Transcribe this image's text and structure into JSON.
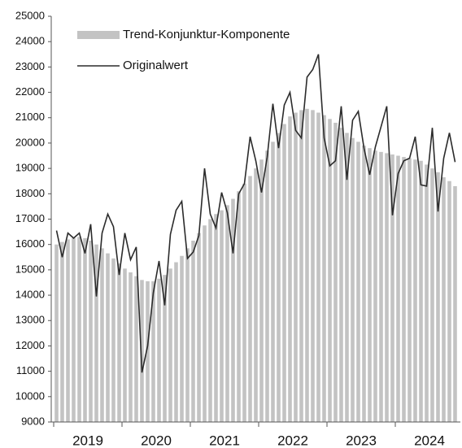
{
  "chart_data": {
    "type": "bar-line",
    "years": [
      "2019",
      "2020",
      "2021",
      "2022",
      "2023",
      "2024"
    ],
    "series": [
      {
        "name": "Trend-Konjunktur-Komponente",
        "kind": "bar",
        "color": "#c3c3c3",
        "values": [
          16000,
          16100,
          16200,
          16250,
          16300,
          16250,
          16150,
          16000,
          15850,
          15650,
          15450,
          15250,
          15050,
          14900,
          14750,
          14600,
          14550,
          14550,
          14650,
          14800,
          15050,
          15300,
          15550,
          15850,
          16150,
          16450,
          16750,
          17000,
          17200,
          17350,
          17550,
          17800,
          18100,
          18400,
          18700,
          19000,
          19350,
          19700,
          20050,
          20400,
          20750,
          21050,
          21200,
          21300,
          21350,
          21300,
          21200,
          21100,
          20950,
          20800,
          20600,
          20400,
          20200,
          20050,
          19900,
          19800,
          19700,
          19650,
          19600,
          19550,
          19500,
          19450,
          19400,
          19350,
          19300,
          19150,
          19000,
          18850,
          18650,
          18500,
          18300
        ]
      },
      {
        "name": "Originalwert",
        "kind": "line",
        "color": "#2b2b2b",
        "values": [
          16550,
          15500,
          16450,
          16250,
          16450,
          15650,
          16800,
          13950,
          16450,
          17200,
          16700,
          14800,
          16450,
          15400,
          15900,
          10950,
          12000,
          14100,
          15350,
          13600,
          16400,
          17350,
          17700,
          15450,
          15700,
          16350,
          19000,
          17200,
          16650,
          18050,
          17250,
          15650,
          18000,
          18400,
          20250,
          19300,
          18050,
          19450,
          21550,
          19800,
          21500,
          22000,
          20500,
          20200,
          22600,
          22900,
          23500,
          20200,
          19100,
          19300,
          21450,
          18550,
          20900,
          21250,
          19800,
          18750,
          19850,
          20650,
          21450,
          17150,
          18800,
          19300,
          19400,
          20250,
          18350,
          18300,
          20600,
          17300,
          19400,
          20400,
          19250
        ]
      }
    ],
    "ylim": [
      9000,
      25000
    ],
    "yticks": [
      9000,
      10000,
      11000,
      12000,
      13000,
      14000,
      15000,
      16000,
      17000,
      18000,
      19000,
      20000,
      21000,
      22000,
      23000,
      24000,
      25000
    ],
    "legend": "top-left",
    "grid": false
  }
}
